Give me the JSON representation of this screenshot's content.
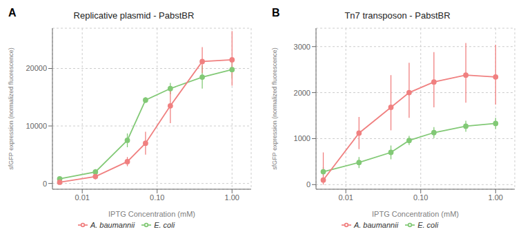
{
  "chart_data": [
    {
      "type": "line",
      "title": "Replicative plasmid - PabstBR",
      "annotations": [
        "A"
      ],
      "xlabel": "IPTG Concentration (mM)",
      "ylabel": "sfGFP expression (normalized fluorescence)",
      "x": [
        0.005,
        0.015,
        0.04,
        0.07,
        0.15,
        0.4,
        1.0
      ],
      "series": [
        {
          "name": "E. coli",
          "color": "#82c976",
          "marker": "circle",
          "values": [
            800,
            2000,
            7500,
            14500,
            16500,
            18500,
            19800
          ],
          "error_lo": [
            300,
            500,
            1200,
            500,
            1000,
            2000,
            1500
          ],
          "error_hi": [
            300,
            500,
            1200,
            500,
            1000,
            2000,
            1500
          ]
        },
        {
          "name": "A. baumannii",
          "color": "#f08080",
          "marker": "circle",
          "values": [
            200,
            1200,
            3800,
            7000,
            13500,
            21200,
            21500
          ],
          "error_lo": [
            200,
            500,
            800,
            2000,
            3000,
            2000,
            4500
          ],
          "error_hi": [
            200,
            500,
            800,
            2000,
            3000,
            2500,
            5000
          ]
        }
      ],
      "xlim": [
        0.004,
        1.8
      ],
      "xticks": [
        0.01,
        {
          "value": 0.1,
          "label": "0.10"
        },
        {
          "value": 1.0,
          "label": "1.00"
        }
      ],
      "ylim": [
        -1000,
        27000
      ],
      "yticks": [
        0,
        10000,
        20000
      ],
      "log": "x",
      "grid": true,
      "legend": "bottom"
    },
    {
      "type": "line",
      "title": "Tn7 transposon - PabstBR",
      "annotations": [
        "B"
      ],
      "xlabel": "IPTG Concentration (mM)",
      "ylabel": "sfGFP expression (normalized fluorescence)",
      "x": [
        0.005,
        0.015,
        0.04,
        0.07,
        0.15,
        0.4,
        1.0
      ],
      "series": [
        {
          "name": "E. coli",
          "color": "#82c976",
          "marker": "circle",
          "values": [
            280,
            480,
            700,
            960,
            1130,
            1270,
            1330
          ],
          "error_lo": [
            100,
            120,
            150,
            100,
            120,
            120,
            120
          ],
          "error_hi": [
            100,
            120,
            150,
            100,
            120,
            120,
            120
          ]
        },
        {
          "name": "A. baumannii",
          "color": "#f08080",
          "marker": "circle",
          "values": [
            100,
            1120,
            1680,
            2000,
            2230,
            2380,
            2340
          ],
          "error_lo": [
            100,
            350,
            500,
            550,
            550,
            600,
            600
          ],
          "error_hi": [
            600,
            350,
            700,
            650,
            650,
            700,
            700
          ]
        }
      ],
      "xlim": [
        0.004,
        1.8
      ],
      "xticks": [
        0.01,
        {
          "value": 0.1,
          "label": "0.10"
        },
        {
          "value": 1.0,
          "label": "1.00"
        }
      ],
      "ylim": [
        -100,
        3400
      ],
      "yticks": [
        0,
        1000,
        2000,
        3000
      ],
      "log": "x",
      "grid": true,
      "legend": "bottom"
    }
  ]
}
